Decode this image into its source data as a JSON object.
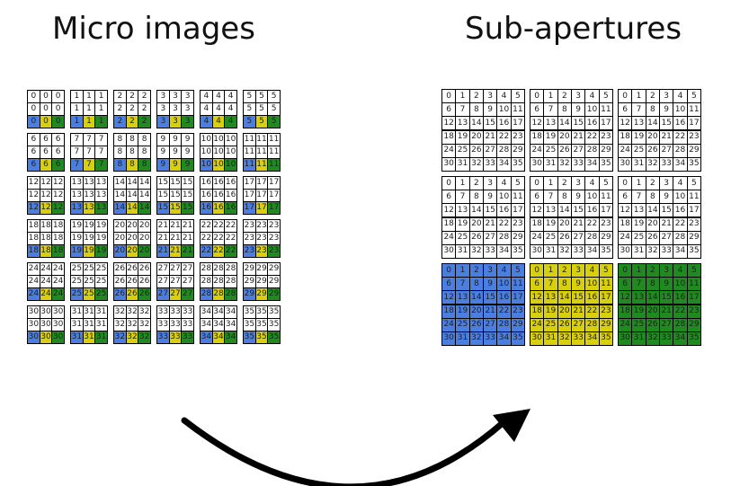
{
  "titles": {
    "left": "Micro images",
    "right": "Sub-apertures"
  },
  "micro_images": {
    "block_rows": 6,
    "block_cols": 6,
    "cells_per_block": 3,
    "value_rule": "block index (row*6+col) shown in every cell",
    "bottom_row_colors": [
      "blue",
      "yellow",
      "green"
    ]
  },
  "sub_apertures": {
    "block_rows": 3,
    "block_cols": 3,
    "cells_per_block": 6,
    "value_rule": "cell index (row*6+col) shown in every block, 0..35",
    "highlighted_blocks": [
      {
        "block_row": 2,
        "block_col": 0,
        "color": "blue"
      },
      {
        "block_row": 2,
        "block_col": 1,
        "color": "yellow"
      },
      {
        "block_row": 2,
        "block_col": 2,
        "color": "green"
      }
    ]
  },
  "colors": {
    "blue": "#4a7ee0",
    "yellow": "#d8cf0d",
    "green": "#1f8a1f",
    "border": "#000000",
    "arrow": "#000000"
  },
  "arrow": {
    "direction": "left-to-right",
    "shape": "curved-arrow"
  }
}
